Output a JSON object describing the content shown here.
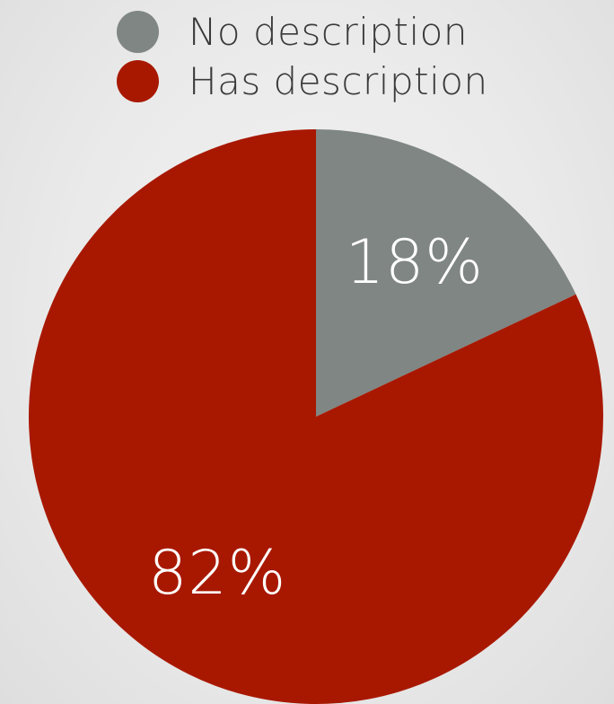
{
  "chart_data": {
    "type": "pie",
    "title": "",
    "series": [
      {
        "name": "No description",
        "value": 18,
        "label": "18%",
        "color": "#7f8683"
      },
      {
        "name": "Has description",
        "value": 82,
        "label": "82%",
        "color": "#a81800"
      }
    ],
    "start_angle_deg": 0,
    "direction": "clockwise",
    "legend_placement": "top"
  }
}
